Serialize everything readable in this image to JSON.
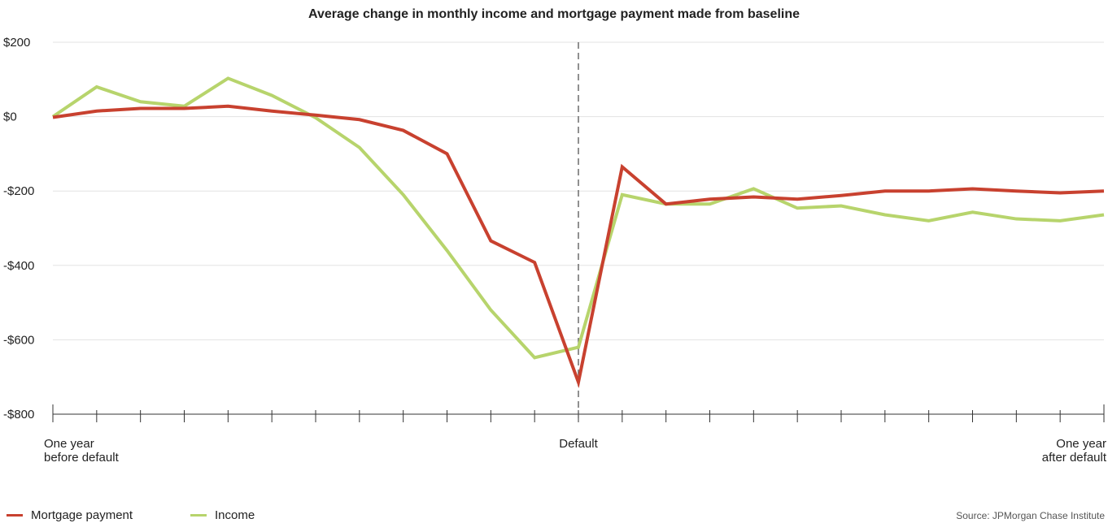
{
  "chart_data": {
    "type": "line",
    "title": "Average change in monthly income and mortgage payment made from baseline",
    "categories": [
      "One year\nbefore default",
      null,
      null,
      null,
      null,
      null,
      null,
      null,
      null,
      null,
      null,
      null,
      "Default",
      null,
      null,
      null,
      null,
      null,
      null,
      null,
      null,
      null,
      null,
      null,
      "One year\nafter default"
    ],
    "series": [
      {
        "name": "Mortgage payment",
        "color": "#c8412f",
        "values": [
          -2,
          15,
          22,
          22,
          28,
          15,
          4,
          -8,
          -37,
          -100,
          -334,
          -392,
          -714,
          -135,
          -235,
          -222,
          -216,
          -222,
          -212,
          -200,
          -200,
          -194,
          -200,
          -205,
          -200
        ]
      },
      {
        "name": "Income",
        "color": "#b7d46c",
        "values": [
          0,
          80,
          40,
          28,
          103,
          57,
          -3,
          -83,
          -210,
          -360,
          -520,
          -648,
          -620,
          -210,
          -235,
          -235,
          -194,
          -246,
          -240,
          -264,
          -280,
          -257,
          -275,
          -280,
          -264
        ]
      }
    ],
    "ylim": [
      -800,
      200
    ],
    "yticks": [
      {
        "value": -800,
        "label": "-$800"
      },
      {
        "value": -600,
        "label": "-$600"
      },
      {
        "value": -400,
        "label": "-$400"
      },
      {
        "value": -200,
        "label": "-$200"
      },
      {
        "value": 0,
        "label": "$0"
      },
      {
        "value": 200,
        "label": "$200"
      }
    ],
    "grid": true,
    "legend": "bottom-left",
    "source": "Source: JPMorgan Chase Institute"
  }
}
